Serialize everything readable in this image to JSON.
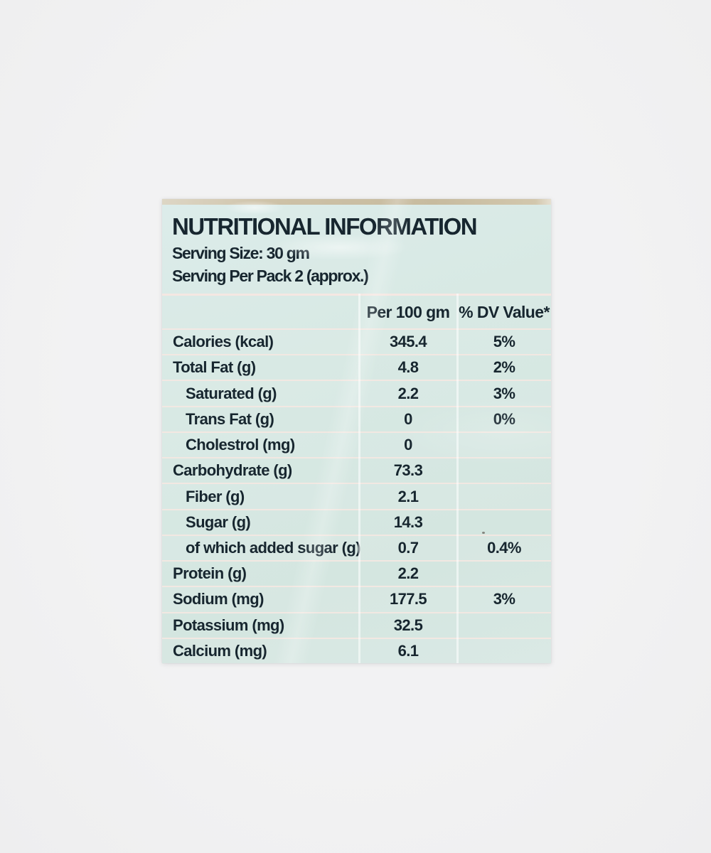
{
  "photo": {
    "background_color": "#f0f0f1"
  },
  "label": {
    "colors": {
      "label_background": "#d7e8e3",
      "package_edge_strip": "#cbbfa4",
      "text": "#17262f",
      "row_line": "#f2e5e0",
      "column_line": "#ffffff"
    },
    "title": "NUTRITIONAL INFORMATION",
    "serving_size": "Serving Size: 30 gm",
    "serving_per_pack": "Serving Per Pack 2 (approx.)",
    "table": {
      "columns": [
        "",
        "Per 100 gm",
        "% DV Value*"
      ],
      "rows": [
        {
          "name": "Calories (kcal)",
          "per_100gm": "345.4",
          "dv_value": "5%"
        },
        {
          "name": "Total Fat (g)",
          "per_100gm": "4.8",
          "dv_value": "2%"
        },
        {
          "name": "Saturated (g)",
          "per_100gm": "2.2",
          "dv_value": "3%"
        },
        {
          "name": "Trans Fat (g)",
          "per_100gm": "0",
          "dv_value": "0%"
        },
        {
          "name": "Cholestrol (mg)",
          "per_100gm": "0",
          "dv_value": ""
        },
        {
          "name": "Carbohydrate (g)",
          "per_100gm": "73.3",
          "dv_value": ""
        },
        {
          "name": "Fiber (g)",
          "per_100gm": "2.1",
          "dv_value": ""
        },
        {
          "name": "Sugar (g)",
          "per_100gm": "14.3",
          "dv_value": ""
        },
        {
          "name": "of which added sugar (g)",
          "per_100gm": "0.7",
          "dv_value": "0.4%"
        },
        {
          "name": "Protein (g)",
          "per_100gm": "2.2",
          "dv_value": ""
        },
        {
          "name": "Sodium (mg)",
          "per_100gm": "177.5",
          "dv_value": "3%"
        },
        {
          "name": "Potassium (mg)",
          "per_100gm": "32.5",
          "dv_value": ""
        },
        {
          "name": "Calcium (mg)",
          "per_100gm": "6.1",
          "dv_value": ""
        }
      ]
    }
  }
}
